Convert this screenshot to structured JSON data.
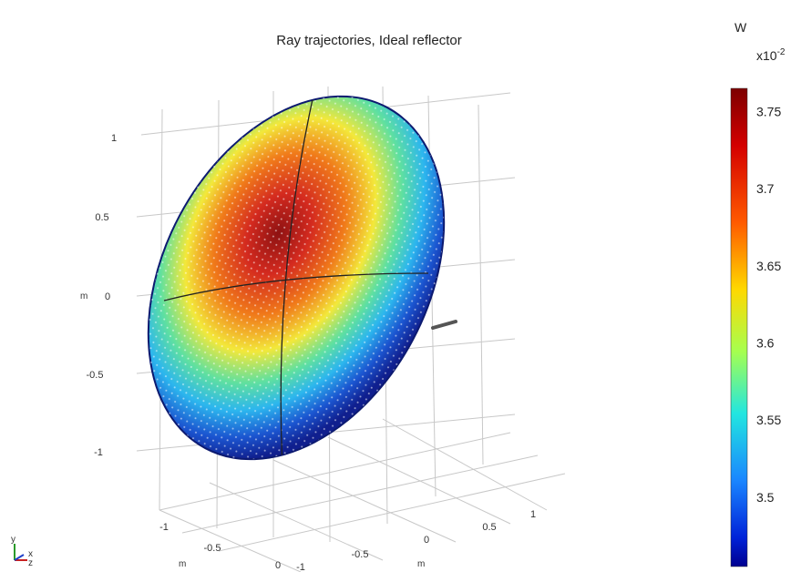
{
  "chart_data": {
    "type": "surface3d",
    "title": "Ray trajectories, Ideal reflector",
    "description_values": {
      "z_axis": {
        "unit": "m",
        "ticks": [
          "1",
          "0.5",
          "0",
          "-0.5",
          "-1"
        ]
      },
      "x_axis": {
        "unit": "m",
        "ticks": [
          "-1",
          "-0.5",
          "0",
          "0.5",
          "1"
        ]
      },
      "y_axis": {
        "unit": "m",
        "ticks": [
          "-1",
          "-0.5",
          "0"
        ]
      }
    },
    "colorbar": {
      "quantity": "W",
      "multiplier": "x10-2",
      "ticks": [
        "3.75",
        "3.7",
        "3.65",
        "3.6",
        "3.55",
        "3.5"
      ],
      "range": [
        3.455,
        3.765
      ],
      "colormap": "jet"
    },
    "triad": {
      "labels": [
        "y",
        "x",
        "z"
      ]
    },
    "colors": {
      "surface_center": "#c81e1e",
      "surface_edge": "#1a2aa0",
      "grid_line": "#c8c8c8",
      "marker": "#555555"
    }
  }
}
